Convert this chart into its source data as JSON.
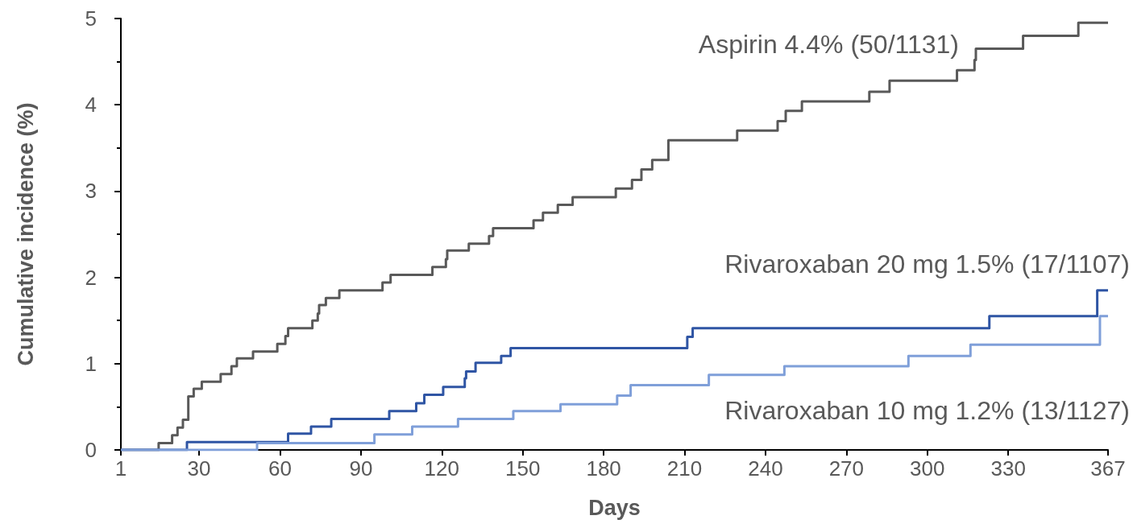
{
  "chart_data": {
    "type": "step",
    "xlabel": "Days",
    "ylabel": "Cumulative incidence (%)",
    "xlim": [
      1,
      367
    ],
    "xticks": [
      1,
      30,
      60,
      90,
      120,
      150,
      180,
      210,
      240,
      270,
      300,
      330,
      367
    ],
    "ylim": [
      0,
      5
    ],
    "yticks": [
      0,
      1,
      2,
      3,
      4,
      5
    ],
    "grid": false,
    "legend": false,
    "marker": "none",
    "line_style": "solid",
    "series": [
      {
        "name": "Aspirin 4.4% (50/1131)",
        "color": "#595959",
        "x": [
          1,
          15,
          20,
          22,
          24,
          26,
          28,
          31,
          38,
          42,
          44,
          50,
          59,
          62,
          63,
          72,
          74,
          74.5,
          77,
          82,
          98,
          101,
          116.5,
          121.5,
          122,
          130,
          137.5,
          139,
          154,
          157.5,
          163,
          168.5,
          184.5,
          190.5,
          194,
          198,
          204,
          229.5,
          244.5,
          247.5,
          253.5,
          278.5,
          286,
          311,
          317.5,
          318,
          335.5,
          356,
          367
        ],
        "values": [
          0,
          0.08,
          0.17,
          0.26,
          0.35,
          0.62,
          0.71,
          0.79,
          0.88,
          0.97,
          1.06,
          1.14,
          1.23,
          1.32,
          1.41,
          1.5,
          1.58,
          1.68,
          1.76,
          1.85,
          1.94,
          2.03,
          2.12,
          2.21,
          2.31,
          2.39,
          2.48,
          2.57,
          2.66,
          2.75,
          2.84,
          2.93,
          3.03,
          3.13,
          3.25,
          3.36,
          3.59,
          3.7,
          3.81,
          3.93,
          4.04,
          4.15,
          4.28,
          4.4,
          4.52,
          4.65,
          4.8,
          4.95,
          4.95
        ]
      },
      {
        "name": "Rivaroxaban 20 mg 1.5% (17/1107)",
        "color": "#2f55a4",
        "x": [
          1,
          25.5,
          63,
          71.5,
          79,
          100.5,
          110.5,
          113.5,
          120.5,
          128.5,
          129,
          132.5,
          142,
          145.5,
          211,
          213,
          323,
          363,
          367
        ],
        "values": [
          0,
          0.09,
          0.19,
          0.27,
          0.36,
          0.45,
          0.54,
          0.64,
          0.73,
          0.83,
          0.91,
          1.01,
          1.09,
          1.18,
          1.31,
          1.41,
          1.55,
          1.85,
          1.85
        ]
      },
      {
        "name": "Rivaroxaban 10 mg 1.2% (13/1127)",
        "color": "#7f9fd9",
        "x": [
          1,
          51.5,
          95,
          109,
          126,
          146.5,
          164,
          185,
          190,
          219,
          247,
          293,
          316,
          364,
          367
        ],
        "values": [
          0,
          0.08,
          0.18,
          0.27,
          0.36,
          0.45,
          0.53,
          0.63,
          0.75,
          0.87,
          0.97,
          1.09,
          1.22,
          1.55,
          1.55
        ]
      }
    ]
  }
}
